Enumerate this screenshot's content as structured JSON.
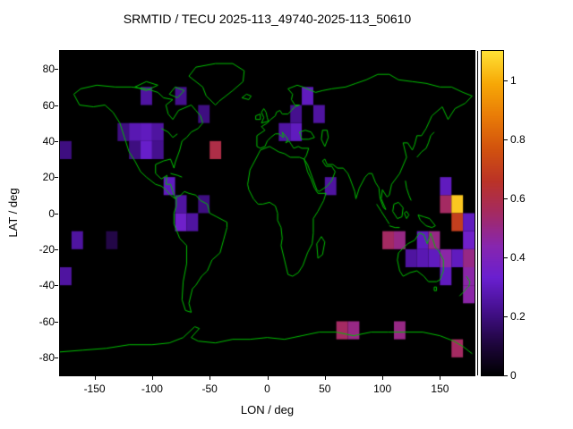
{
  "chart_data": {
    "type": "heatmap",
    "title": "SRMTID / TECU 2025-113_49740-2025-113_50610",
    "xlabel": "LON / deg",
    "ylabel": "LAT / deg",
    "xlim": [
      -180,
      180
    ],
    "ylim": [
      -90,
      90
    ],
    "xticks": [
      -150,
      -100,
      -50,
      0,
      50,
      100,
      150
    ],
    "yticks": [
      80,
      60,
      40,
      20,
      0,
      -20,
      -40,
      -60,
      -80
    ],
    "grid": false,
    "legend": "colorbar-right",
    "background": "#000000",
    "coastline_color": "#00c000",
    "basemap": "world-coastlines",
    "cell_size_deg": 10,
    "colorbar": {
      "min": 0,
      "max": 1.1,
      "ticks": [
        0,
        0.2,
        0.4,
        0.6,
        0.8,
        1
      ]
    },
    "palette_stops": [
      [
        0.0,
        "#000002"
      ],
      [
        0.1,
        "#200640"
      ],
      [
        0.2,
        "#45108e"
      ],
      [
        0.3,
        "#6a1fd0"
      ],
      [
        0.4,
        "#8826ae"
      ],
      [
        0.5,
        "#a42a62"
      ],
      [
        0.6,
        "#bb3327"
      ],
      [
        0.7,
        "#d2530e"
      ],
      [
        0.8,
        "#e97c07"
      ],
      [
        0.9,
        "#f7a806"
      ],
      [
        1.0,
        "#ffe135"
      ]
    ],
    "cells": [
      {
        "lon": -110,
        "lat": 60,
        "value": 0.25
      },
      {
        "lon": -80,
        "lat": 60,
        "value": 0.22
      },
      {
        "lon": -60,
        "lat": 50,
        "value": 0.2
      },
      {
        "lon": -130,
        "lat": 40,
        "value": 0.2
      },
      {
        "lon": -120,
        "lat": 40,
        "value": 0.28
      },
      {
        "lon": -110,
        "lat": 40,
        "value": 0.3
      },
      {
        "lon": -100,
        "lat": 40,
        "value": 0.25
      },
      {
        "lon": -120,
        "lat": 30,
        "value": 0.2
      },
      {
        "lon": -110,
        "lat": 30,
        "value": 0.32
      },
      {
        "lon": -100,
        "lat": 30,
        "value": 0.22
      },
      {
        "lon": -50,
        "lat": 30,
        "value": 0.6
      },
      {
        "lon": 10,
        "lat": 40,
        "value": 0.25
      },
      {
        "lon": 20,
        "lat": 40,
        "value": 0.3
      },
      {
        "lon": 20,
        "lat": 50,
        "value": 0.22
      },
      {
        "lon": 30,
        "lat": 60,
        "value": 0.3
      },
      {
        "lon": 40,
        "lat": 50,
        "value": 0.25
      },
      {
        "lon": -90,
        "lat": 10,
        "value": 0.3
      },
      {
        "lon": -80,
        "lat": 0,
        "value": 0.25
      },
      {
        "lon": -80,
        "lat": -10,
        "value": 0.35
      },
      {
        "lon": -70,
        "lat": -10,
        "value": 0.25
      },
      {
        "lon": -60,
        "lat": 0,
        "value": 0.2
      },
      {
        "lon": -170,
        "lat": -20,
        "value": 0.25
      },
      {
        "lon": -140,
        "lat": -20,
        "value": 0.12
      },
      {
        "lon": -180,
        "lat": -40,
        "value": 0.25
      },
      {
        "lon": -180,
        "lat": 30,
        "value": 0.2
      },
      {
        "lon": 50,
        "lat": 10,
        "value": 0.25
      },
      {
        "lon": 100,
        "lat": -20,
        "value": 0.55
      },
      {
        "lon": 110,
        "lat": -20,
        "value": 0.5
      },
      {
        "lon": 120,
        "lat": -30,
        "value": 0.25
      },
      {
        "lon": 130,
        "lat": -20,
        "value": 0.3
      },
      {
        "lon": 140,
        "lat": -20,
        "value": 0.5
      },
      {
        "lon": 130,
        "lat": -30,
        "value": 0.28
      },
      {
        "lon": 140,
        "lat": -30,
        "value": 0.3
      },
      {
        "lon": 150,
        "lat": -30,
        "value": 0.45
      },
      {
        "lon": 150,
        "lat": -40,
        "value": 0.3
      },
      {
        "lon": 150,
        "lat": 0,
        "value": 0.55
      },
      {
        "lon": 150,
        "lat": 10,
        "value": 0.3
      },
      {
        "lon": 160,
        "lat": 0,
        "value": 1.05
      },
      {
        "lon": 160,
        "lat": -10,
        "value": 0.7
      },
      {
        "lon": 170,
        "lat": -10,
        "value": 0.3
      },
      {
        "lon": 170,
        "lat": -20,
        "value": 0.35
      },
      {
        "lon": 160,
        "lat": -30,
        "value": 0.3
      },
      {
        "lon": 170,
        "lat": -30,
        "value": 0.5
      },
      {
        "lon": 170,
        "lat": -40,
        "value": 0.45
      },
      {
        "lon": 170,
        "lat": -50,
        "value": 0.45
      },
      {
        "lon": 60,
        "lat": -70,
        "value": 0.55
      },
      {
        "lon": 70,
        "lat": -70,
        "value": 0.5
      },
      {
        "lon": 110,
        "lat": -70,
        "value": 0.5
      },
      {
        "lon": 160,
        "lat": -80,
        "value": 0.55
      }
    ]
  }
}
